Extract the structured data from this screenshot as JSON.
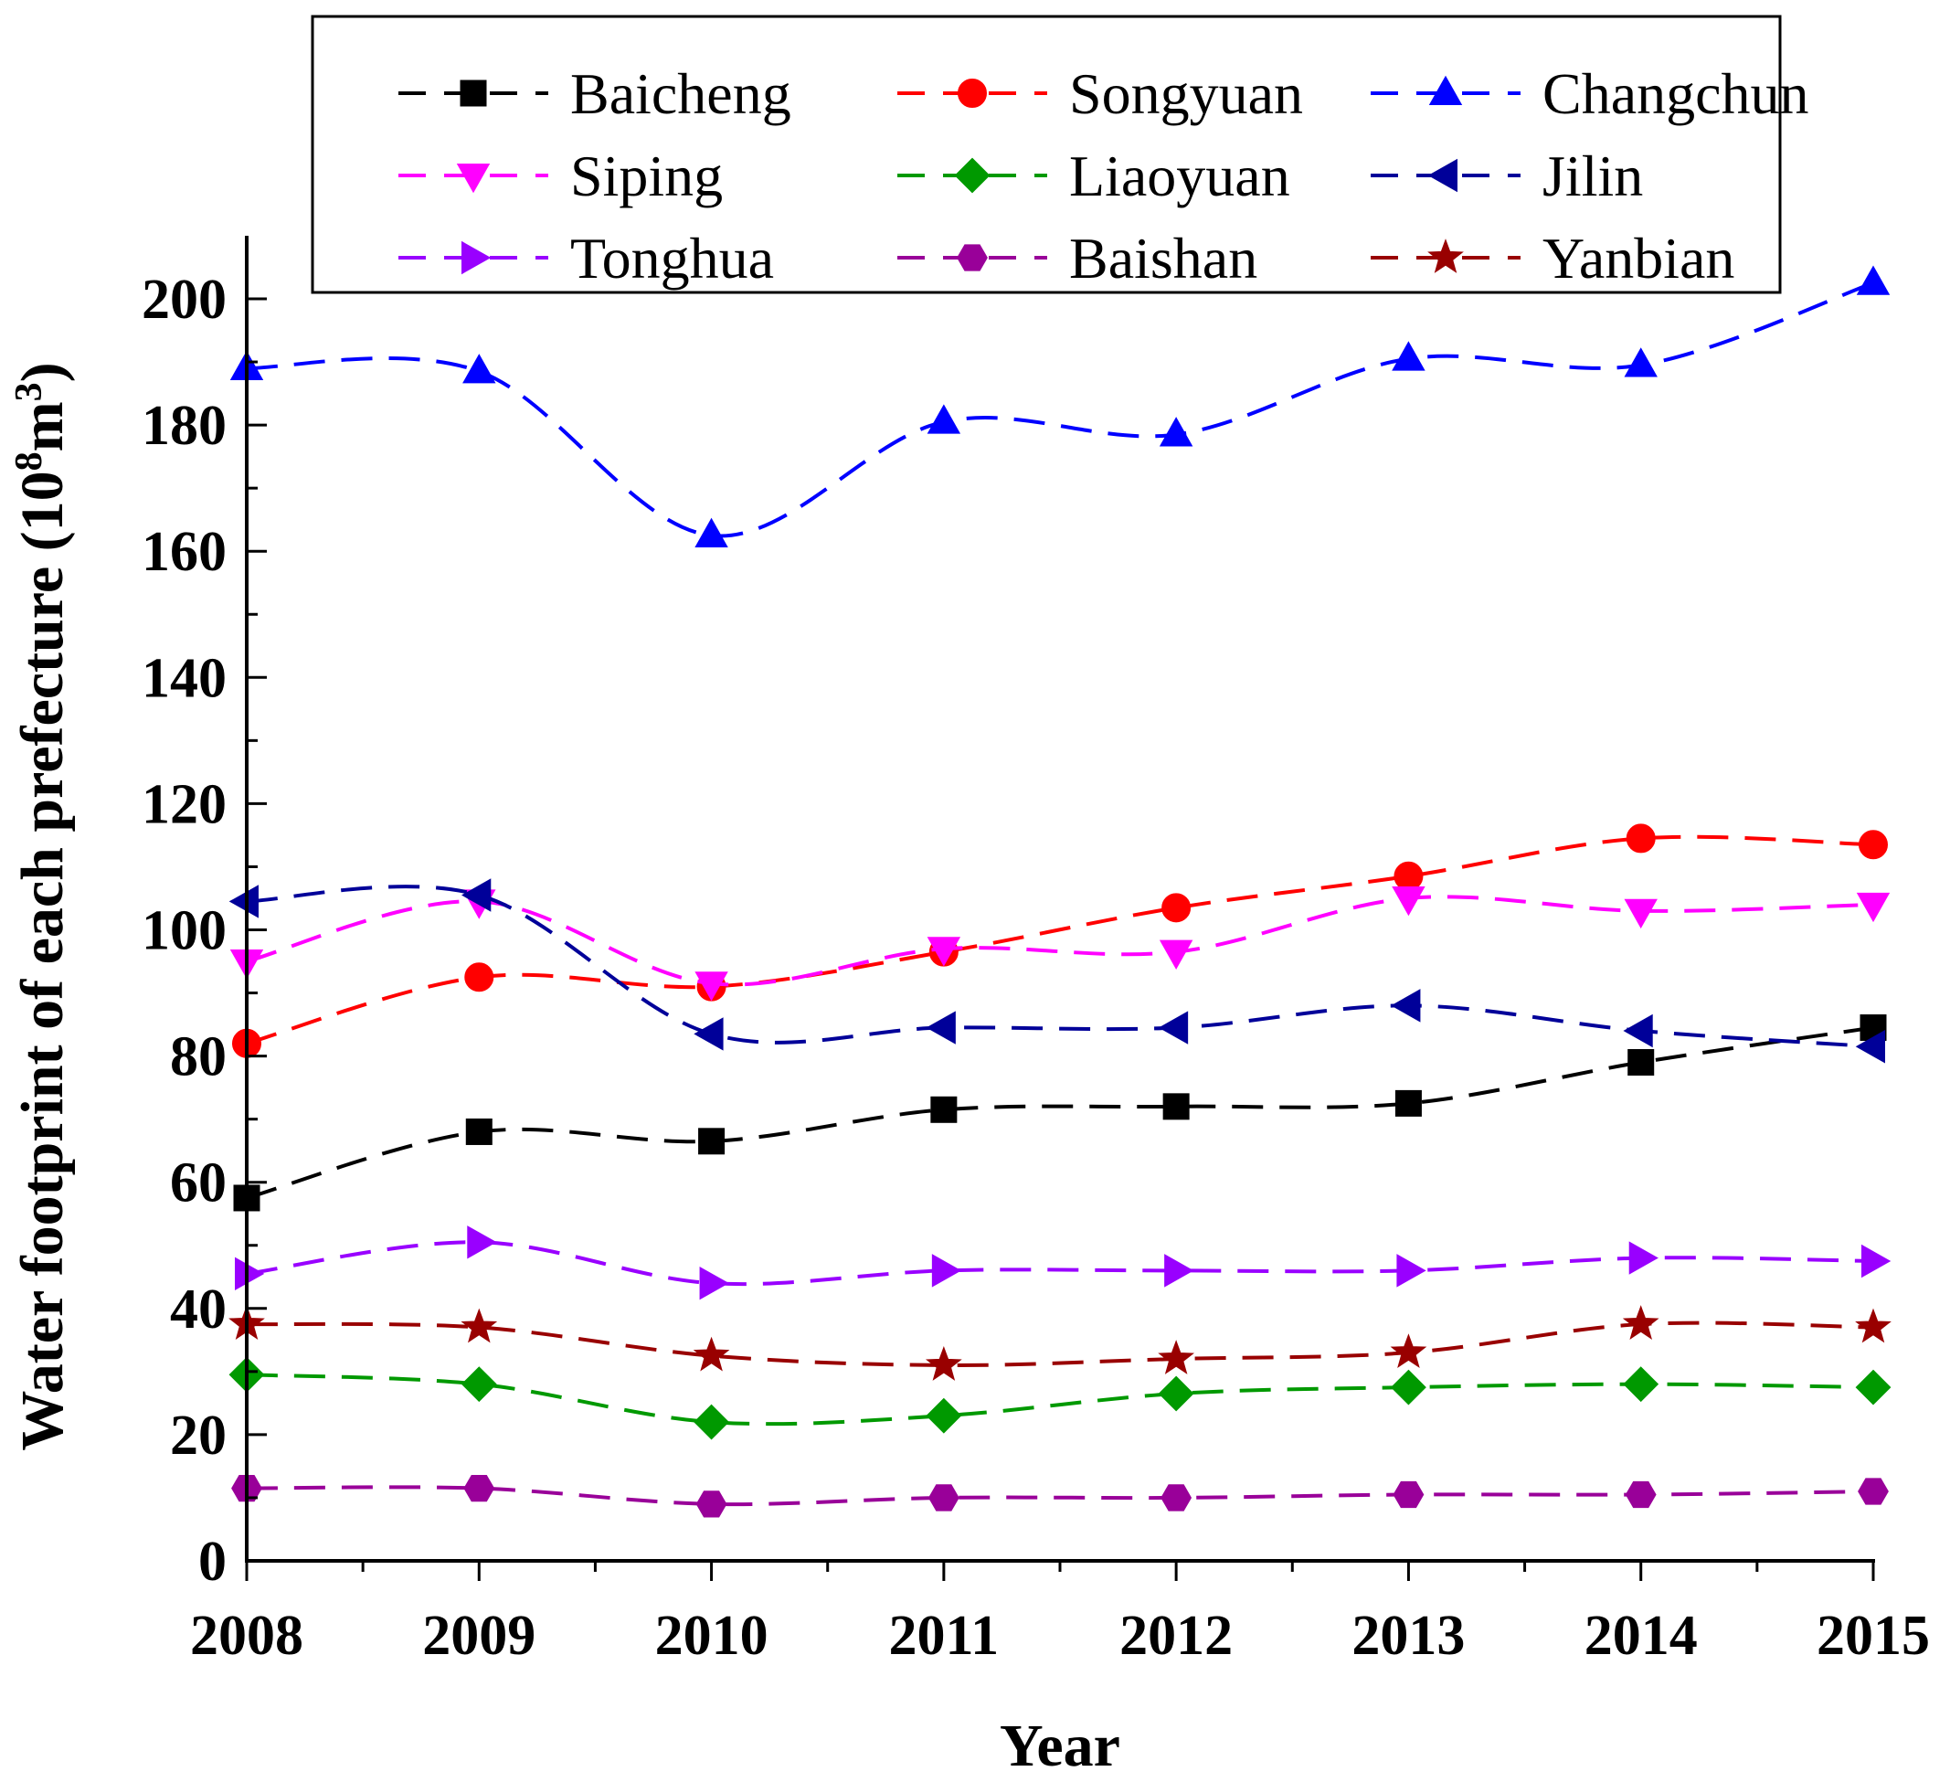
{
  "chart_data": {
    "type": "line",
    "title": "",
    "xlabel": "Year",
    "ylabel": "Water footprint of each prefecture (10⁸m³)",
    "ylabel_parts": {
      "main": "Water footprint of each prefecture (10",
      "sup1": "8",
      "mid": "m",
      "sup2": "3",
      "end": ")"
    },
    "x": [
      2008,
      2009,
      2010,
      2011,
      2012,
      2013,
      2014,
      2015
    ],
    "xlim": [
      2008,
      2015
    ],
    "ylim": [
      0,
      210
    ],
    "yticks": [
      0,
      20,
      40,
      60,
      80,
      100,
      120,
      140,
      160,
      180,
      200
    ],
    "grid": false,
    "legend_position": "top",
    "series": [
      {
        "name": "Baicheng",
        "color": "#000000",
        "marker": "square",
        "values": [
          57.5,
          68.0,
          66.5,
          71.5,
          72.0,
          72.5,
          79.0,
          84.5
        ]
      },
      {
        "name": "Songyuan",
        "color": "#ff0000",
        "marker": "circle",
        "values": [
          82.0,
          92.5,
          91.0,
          96.5,
          103.5,
          108.5,
          114.5,
          113.5
        ]
      },
      {
        "name": "Changchun",
        "color": "#0000ff",
        "marker": "triangle-up",
        "values": [
          189.0,
          188.5,
          162.5,
          180.5,
          178.5,
          190.5,
          189.5,
          202.5
        ]
      },
      {
        "name": "Siping",
        "color": "#ff00ff",
        "marker": "triangle-down",
        "values": [
          95.0,
          104.5,
          91.5,
          97.0,
          96.5,
          105.0,
          103.0,
          104.0
        ]
      },
      {
        "name": "Liaoyuan",
        "color": "#009900",
        "marker": "diamond",
        "values": [
          29.5,
          28.0,
          22.0,
          23.0,
          26.5,
          27.5,
          28.0,
          27.5
        ]
      },
      {
        "name": "Jilin",
        "color": "#000099",
        "marker": "triangle-left",
        "values": [
          104.5,
          105.5,
          83.5,
          84.5,
          84.5,
          88.0,
          84.0,
          81.5
        ]
      },
      {
        "name": "Tonghua",
        "color": "#9900ff",
        "marker": "triangle-right",
        "values": [
          45.5,
          50.5,
          44.0,
          46.0,
          46.0,
          46.0,
          48.0,
          47.5
        ]
      },
      {
        "name": "Baishan",
        "color": "#990099",
        "marker": "hexagon",
        "values": [
          11.5,
          11.5,
          9.0,
          10.0,
          10.0,
          10.5,
          10.5,
          11.0
        ]
      },
      {
        "name": "Yanbian",
        "color": "#990000",
        "marker": "star",
        "values": [
          37.5,
          37.0,
          32.5,
          31.0,
          32.0,
          33.0,
          37.5,
          37.0
        ]
      }
    ]
  }
}
